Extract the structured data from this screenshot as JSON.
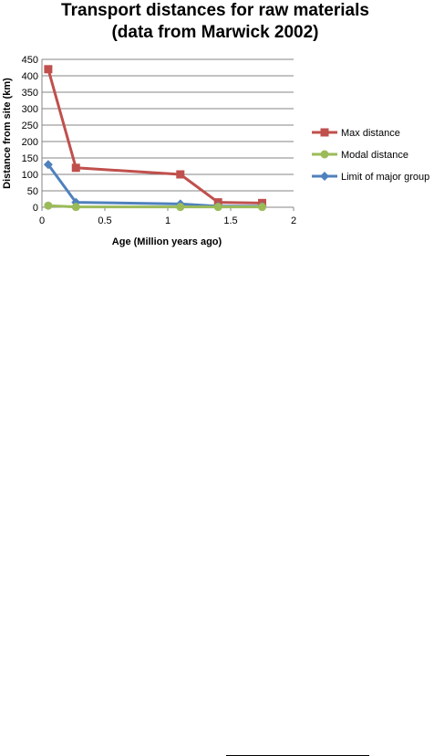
{
  "chart_data": {
    "type": "line",
    "title_lines": [
      "Transport distances for raw materials",
      "(data from Marwick 2002)"
    ],
    "xlabel": "Age (Million years ago)",
    "ylabel": "Distance from site (km)",
    "xlim": [
      0,
      2
    ],
    "ylim": [
      0,
      450
    ],
    "xticks": [
      0,
      0.5,
      1,
      1.5,
      2
    ],
    "xtick_labels": [
      "0",
      "0.5",
      "1",
      "1.5",
      "2"
    ],
    "yticks": [
      0,
      50,
      100,
      150,
      200,
      250,
      300,
      350,
      400,
      450
    ],
    "ytick_labels": [
      "0",
      "50",
      "100",
      "150",
      "200",
      "250",
      "300",
      "350",
      "400",
      "450"
    ],
    "grid": "horizontal",
    "legend_position": "right",
    "series": [
      {
        "name": "Max distance",
        "color": "#c0504d",
        "marker": "square",
        "x": [
          0.05,
          0.27,
          1.1,
          1.4,
          1.75
        ],
        "y": [
          420,
          120,
          100,
          15,
          13
        ]
      },
      {
        "name": "Modal distance",
        "color": "#9bbb59",
        "marker": "circle",
        "x": [
          0.05,
          0.27,
          1.1,
          1.4,
          1.75
        ],
        "y": [
          5,
          1,
          1,
          1,
          1
        ]
      },
      {
        "name": "Limit of major group",
        "color": "#4f81bd",
        "marker": "diamond",
        "x": [
          0.05,
          0.27,
          1.1,
          1.4,
          1.75
        ],
        "y": [
          130,
          15,
          10,
          3,
          3
        ]
      }
    ]
  }
}
